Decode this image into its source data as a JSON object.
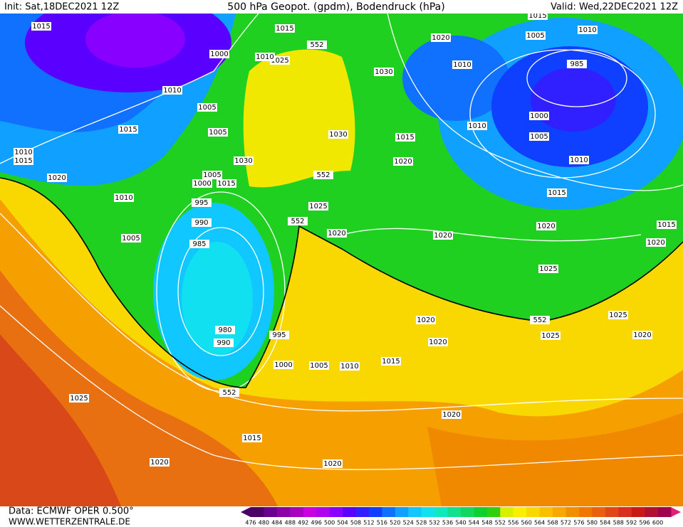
{
  "header": {
    "init": "Init: Sat,18DEC2021 12Z",
    "title": "500 hPa Geopot. (gpdm), Bodendruck (hPa)",
    "valid": "Valid: Wed,22DEC2021 12Z"
  },
  "footer": {
    "data": "Data: ECMWF OPER 0.500°",
    "site": "WWW.WETTERZENTRALE.DE"
  },
  "colorbar": {
    "values": [
      476,
      480,
      484,
      488,
      492,
      496,
      500,
      504,
      508,
      512,
      516,
      520,
      524,
      528,
      532,
      536,
      540,
      544,
      548,
      552,
      556,
      560,
      564,
      568,
      572,
      576,
      580,
      584,
      588,
      592,
      596,
      600
    ],
    "colors": [
      "#4b0069",
      "#6a0090",
      "#8a00a8",
      "#a800c0",
      "#c800e0",
      "#b000f0",
      "#8800ff",
      "#5a00ff",
      "#3020ff",
      "#1040ff",
      "#1070ff",
      "#10a0ff",
      "#10c8ff",
      "#10e0f0",
      "#10e8c0",
      "#10e090",
      "#10d860",
      "#10d030",
      "#30d010",
      "#d8f000",
      "#f8f000",
      "#f8d800",
      "#f8c000",
      "#f8a800",
      "#f09000",
      "#f07800",
      "#e86010",
      "#e04818",
      "#d83020",
      "#c81818",
      "#b01030",
      "#a00050"
    ]
  },
  "isobar_labels": [
    1015,
    1015,
    1000,
    1025,
    1030,
    1010,
    1005,
    1015,
    1005,
    1010,
    1015,
    1020,
    1030,
    1030,
    1005,
    1000,
    1015,
    1010,
    995,
    990,
    985,
    1005,
    1025,
    552,
    1020,
    980,
    990,
    995,
    1000,
    1005,
    1010,
    1015,
    552,
    1025,
    1015,
    1020,
    1020,
    1020,
    1020,
    1020,
    552,
    1025,
    1025,
    1020,
    1020,
    1020,
    1025,
    1015,
    1010,
    1005,
    1000,
    985,
    1005,
    1010,
    1010,
    1020,
    1015,
    1010,
    1015,
    1020,
    1015,
    1020,
    552,
    552,
    1010
  ]
}
